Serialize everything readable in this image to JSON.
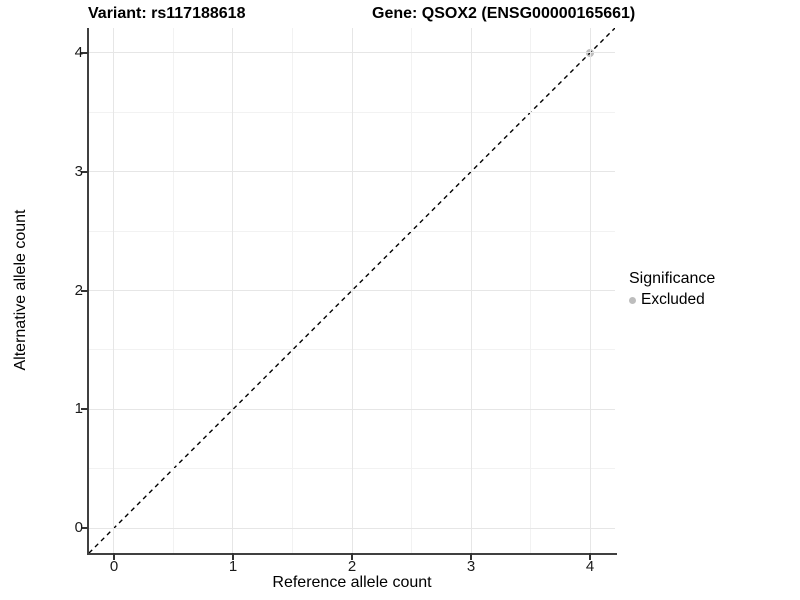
{
  "chart_data": {
    "type": "scatter",
    "title_left": "Variant: rs117188618",
    "title_right": "Gene: QSOX2 (ENSG00000165661)",
    "xlabel": "Reference allele count",
    "ylabel": "Alternative allele count",
    "xlim": [
      -0.21,
      4.21
    ],
    "ylim": [
      -0.21,
      4.21
    ],
    "x_ticks": [
      0,
      1,
      2,
      3,
      4
    ],
    "y_ticks": [
      0,
      1,
      2,
      3,
      4
    ],
    "x_minor_ticks": [
      0.5,
      1.5,
      2.5,
      3.5
    ],
    "y_minor_ticks": [
      0.5,
      1.5,
      2.5,
      3.5
    ],
    "grid": "on",
    "series": [
      {
        "name": "Excluded",
        "color": "#bdbdbd",
        "points": [
          {
            "x": 4,
            "y": 4
          }
        ]
      }
    ],
    "reference_line": {
      "kind": "identity y=x",
      "style": "dashed",
      "color": "#000000"
    },
    "legend": {
      "title": "Significance",
      "position": "right",
      "entries": [
        {
          "label": "Excluded",
          "color": "#bdbdbd"
        }
      ]
    },
    "style": {
      "axis_line_color": "#404040",
      "tick_color": "#333333",
      "grid_major_color": "#e6e6e6",
      "grid_minor_color": "#f2f2f2",
      "background": "#ffffff"
    }
  }
}
